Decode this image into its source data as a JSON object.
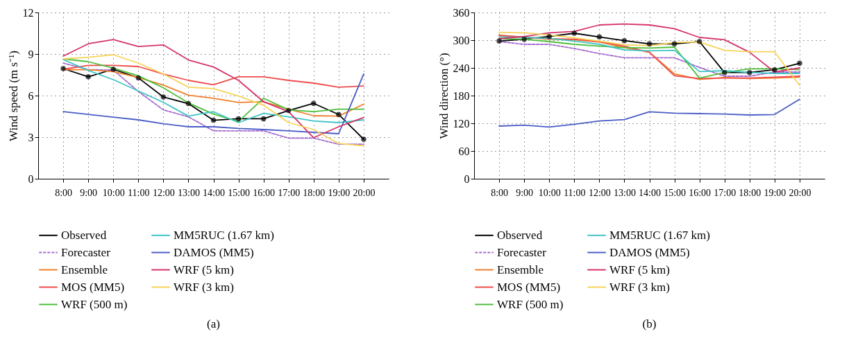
{
  "chart_data": [
    {
      "type": "line",
      "title": "(a)",
      "ylabel": "Wind speed (m s⁻¹)",
      "categories": [
        "8:00",
        "9:00",
        "10:00",
        "11:00",
        "12:00",
        "13:00",
        "14:00",
        "15:00",
        "16:00",
        "17:00",
        "18:00",
        "19:00",
        "20:00"
      ],
      "ylim": [
        0,
        12
      ],
      "yticks": [
        0,
        3,
        6,
        9,
        12
      ],
      "grid": true,
      "legend": "bottom",
      "series": [
        {
          "name": "Observed",
          "color": "#000000",
          "marker": "circle",
          "values": [
            7.95,
            7.36,
            7.9,
            7.28,
            5.9,
            5.42,
            4.22,
            4.33,
            4.33,
            4.92,
            5.44,
            4.64,
            2.85
          ]
        },
        {
          "name": "Forecaster",
          "color": "#a56ad0",
          "line_style": "dashed",
          "values": [
            8.35,
            7.87,
            7.85,
            6.3,
            4.97,
            4.47,
            3.46,
            3.46,
            3.46,
            2.93,
            2.93,
            2.49,
            2.49
          ]
        },
        {
          "name": "Ensemble",
          "color": "#f07f2a",
          "values": [
            7.87,
            7.87,
            7.73,
            7.31,
            6.76,
            6.03,
            5.81,
            5.51,
            5.56,
            5.02,
            4.55,
            4.52,
            5.39
          ]
        },
        {
          "name": "MOS (MM5)",
          "color": "#ee4b4b",
          "values": [
            7.9,
            8.18,
            8.18,
            8.1,
            7.56,
            7.1,
            6.78,
            7.36,
            7.36,
            7.1,
            6.9,
            6.61,
            6.69
          ]
        },
        {
          "name": "WRF (500 m)",
          "color": "#4cbf3a",
          "values": [
            8.65,
            8.45,
            7.98,
            7.43,
            6.56,
            5.47,
            4.67,
            4.13,
            5.81,
            4.97,
            4.84,
            5.02,
            5.02
          ]
        },
        {
          "name": "MM5RUC (1.67 km)",
          "color": "#40c4c4",
          "values": [
            8.6,
            7.82,
            7.15,
            6.34,
            5.51,
            4.52,
            4.84,
            4.05,
            4.72,
            4.47,
            4.17,
            4.05,
            4.25
          ]
        },
        {
          "name": "DAMOS (MM5)",
          "color": "#4a5cc6",
          "values": [
            4.84,
            4.64,
            4.44,
            4.25,
            3.97,
            3.75,
            3.75,
            3.63,
            3.55,
            3.46,
            3.35,
            3.25,
            7.56
          ]
        },
        {
          "name": "WRF (5 km)",
          "color": "#d6336a",
          "values": [
            8.85,
            9.74,
            10.04,
            9.54,
            9.66,
            8.57,
            8.07,
            7.1,
            5.56,
            4.84,
            2.96,
            3.75,
            4.42
          ]
        },
        {
          "name": "WRF (3 km)",
          "color": "#f7d35a",
          "values": [
            8.65,
            8.77,
            8.95,
            8.35,
            7.56,
            6.61,
            6.51,
            5.97,
            5.31,
            4.05,
            3.55,
            2.54,
            2.38
          ]
        }
      ]
    },
    {
      "type": "line",
      "title": "(b)",
      "ylabel": "Wind direction (°)",
      "categories": [
        "8:00",
        "9:00",
        "10:00",
        "11:00",
        "12:00",
        "13:00",
        "14:00",
        "15:00",
        "16:00",
        "17:00",
        "18:00",
        "19:00",
        "20:00"
      ],
      "ylim": [
        0,
        360
      ],
      "yticks": [
        0,
        60,
        120,
        180,
        240,
        300,
        360
      ],
      "grid": true,
      "legend": "bottom",
      "series": [
        {
          "name": "Observed",
          "color": "#000000",
          "marker": "circle",
          "values": [
            298,
            302,
            308,
            315,
            307,
            299,
            292,
            292,
            297,
            230,
            230,
            236,
            250
          ]
        },
        {
          "name": "Forecaster",
          "color": "#a56ad0",
          "line_style": "dashed",
          "values": [
            297,
            291,
            291,
            282,
            271,
            262,
            262,
            262,
            241,
            222,
            222,
            231,
            231
          ]
        },
        {
          "name": "Ensemble",
          "color": "#f07f2a",
          "values": [
            311,
            306,
            302,
            301,
            296,
            284,
            274,
            227,
            215,
            219,
            217,
            218,
            220
          ]
        },
        {
          "name": "MOS (MM5)",
          "color": "#ee4b4b",
          "values": [
            310,
            307,
            303,
            302,
            297,
            287,
            274,
            223,
            217,
            218,
            218,
            220,
            222
          ]
        },
        {
          "name": "WRF (500 m)",
          "color": "#4cbf3a",
          "values": [
            303,
            302,
            297,
            291,
            287,
            284,
            283,
            285,
            218,
            230,
            238,
            238,
            236
          ]
        },
        {
          "name": "MM5RUC (1.67 km)",
          "color": "#40c4c4",
          "values": [
            307,
            306,
            304,
            298,
            291,
            279,
            277,
            278,
            232,
            234,
            230,
            228,
            228
          ]
        },
        {
          "name": "DAMOS (MM5)",
          "color": "#4a5cc6",
          "values": [
            114,
            116,
            112,
            118,
            125,
            128,
            145,
            142,
            141,
            140,
            138,
            139,
            172
          ]
        },
        {
          "name": "WRF (5 km)",
          "color": "#d6336a",
          "values": [
            303,
            308,
            316,
            319,
            333,
            335,
            333,
            325,
            306,
            301,
            274,
            231,
            240
          ]
        },
        {
          "name": "WRF (3 km)",
          "color": "#f7d35a",
          "values": [
            317,
            316,
            311,
            305,
            298,
            290,
            288,
            295,
            296,
            278,
            275,
            275,
            202
          ]
        }
      ]
    }
  ]
}
